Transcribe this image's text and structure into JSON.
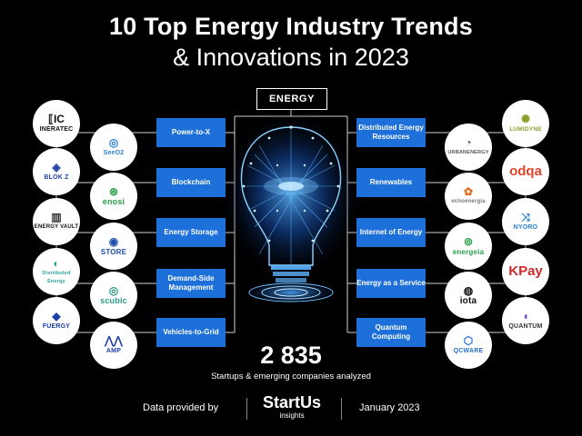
{
  "header": {
    "title_line1": "10 Top Energy Industry  Trends",
    "title_line2": "& Innovations in 2023",
    "center_label": "ENERGY"
  },
  "trends_left": [
    {
      "label": "Power-to-X"
    },
    {
      "label": "Blockchain"
    },
    {
      "label": "Energy Storage"
    },
    {
      "label": "Demand-Side Management"
    },
    {
      "label": "Vehicles-to-Grid"
    }
  ],
  "trends_right": [
    {
      "label": "Distributed Energy Resources"
    },
    {
      "label": "Renewables"
    },
    {
      "label": "Internet of Energy"
    },
    {
      "label": "Energy as a Service"
    },
    {
      "label": "Quantum Computing"
    }
  ],
  "logos": {
    "ineratec": {
      "text": "INERATEC",
      "glyph": "⟦IC"
    },
    "seeo2": {
      "text": "SeeO2",
      "glyph": "◎"
    },
    "blokz": {
      "text": "BLOK Z",
      "glyph": "◈"
    },
    "enosi": {
      "text": "enosi",
      "glyph": "⊛"
    },
    "energyvault": {
      "text": "ENERGY VAULT",
      "glyph": "▥"
    },
    "store": {
      "text": "STORE",
      "glyph": "◉"
    },
    "distributedenergy": {
      "text": "Distributed Energy",
      "glyph": "◐"
    },
    "scubic": {
      "text": "scubic",
      "glyph": "◎"
    },
    "fuergy": {
      "text": "FUERGY",
      "glyph": "◆"
    },
    "amp": {
      "text": "AMP",
      "glyph": "⋀⋀"
    },
    "lumidyne": {
      "text": "LUMIDYNE",
      "glyph": "✺"
    },
    "urbanenergy": {
      "text": "URBANENERGY",
      "glyph": "◔"
    },
    "odqa": {
      "text": "odqa",
      "glyph": "odqa"
    },
    "echoenergia": {
      "text": "echoenergia",
      "glyph": "✿"
    },
    "nyoro": {
      "text": "NYORO",
      "glyph": "⤨"
    },
    "energeia": {
      "text": "energeia",
      "glyph": "⊚"
    },
    "kpay": {
      "text": "KPay",
      "glyph": "KPay"
    },
    "iota": {
      "text": "iota",
      "glyph": "◍"
    },
    "quantum": {
      "text": "QUANTUM",
      "glyph": "◖"
    },
    "qcware": {
      "text": "QCWARE",
      "glyph": "⬡"
    }
  },
  "stats": {
    "count": "2 835",
    "caption": "Startups & emerging companies analyzed"
  },
  "footer": {
    "provided_by": "Data provided by",
    "brand_main": "StartUs",
    "brand_sub": "insights",
    "date": "January 2023"
  },
  "colors": {
    "accent": "#1d6fd9",
    "background": "#000000"
  }
}
